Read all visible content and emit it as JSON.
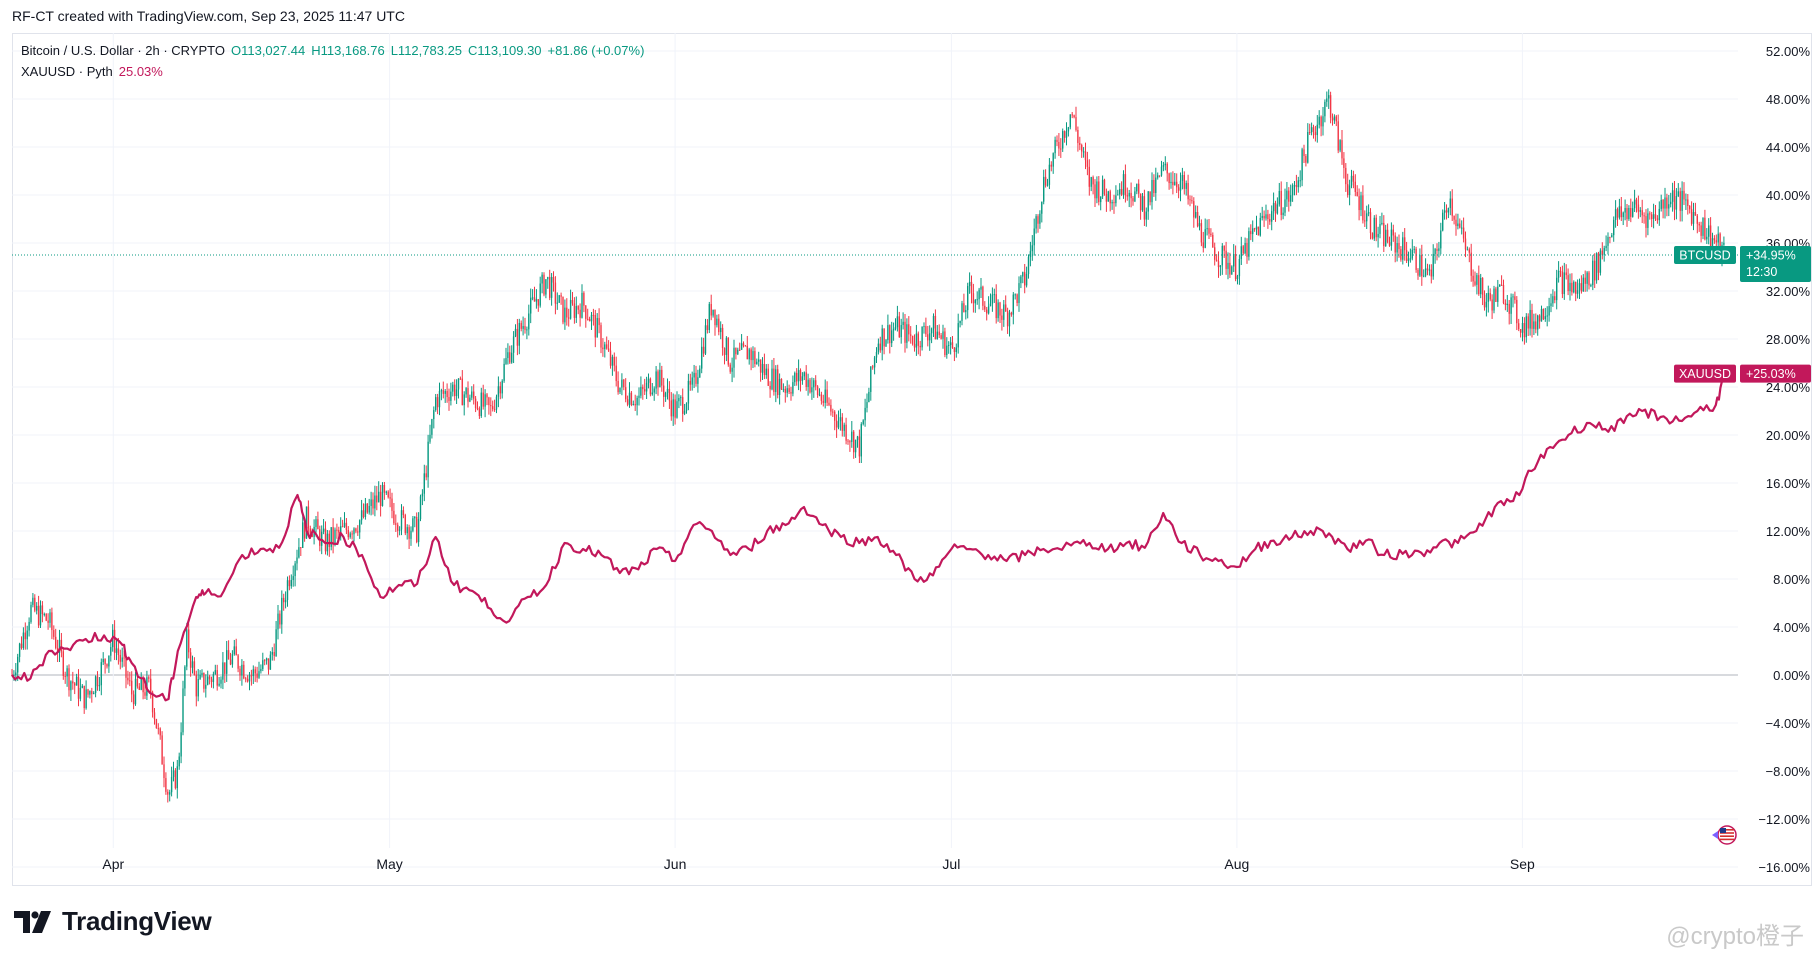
{
  "header": {
    "text": "RF-CT created with TradingView.com, Sep 23, 2025 11:47 UTC"
  },
  "legend": {
    "main": {
      "symbol": "Bitcoin / U.S. Dollar · 2h · CRYPTO",
      "open": "O113,027.44",
      "high": "H113,168.76",
      "low": "L112,783.25",
      "close": "C113,109.30",
      "change": "+81.86 (+0.07%)"
    },
    "compare": {
      "symbol": "XAUUSD · Pyth",
      "value": "25.03%"
    }
  },
  "badges": {
    "btc": {
      "label": "BTCUSD",
      "value": "+34.95%",
      "countdown": "12:30"
    },
    "xau": {
      "label": "XAUUSD",
      "value": "+25.03%"
    }
  },
  "brand": {
    "name": "TradingView"
  },
  "watermark": {
    "text": "@crypto橙子"
  },
  "colors": {
    "up": "#089981",
    "down": "#f23645",
    "xau": "#c2185b",
    "grid": "#f0f3fa",
    "zero": "#b2b5be"
  },
  "chart_data": {
    "type": "line",
    "x_labels": [
      "Apr",
      "May",
      "Jun",
      "Jul",
      "Aug",
      "Sep"
    ],
    "y_ticks": [
      "52.00%",
      "48.00%",
      "44.00%",
      "40.00%",
      "36.00%",
      "32.00%",
      "28.00%",
      "24.00%",
      "20.00%",
      "16.00%",
      "12.00%",
      "8.00%",
      "4.00%",
      "0.00%",
      "−4.00%",
      "−8.00%",
      "−12.00%",
      "−16.00%"
    ],
    "ylim": [
      -17.5,
      53.5
    ],
    "series": [
      {
        "name": "BTCUSD",
        "style": "candles",
        "x": [
          "Mar 21",
          "Mar 23",
          "Mar 25",
          "Mar 27",
          "Mar 29",
          "Mar 31",
          "Apr 1",
          "Apr 3",
          "Apr 5",
          "Apr 7",
          "Apr 8",
          "Apr 9",
          "Apr 10",
          "Apr 12",
          "Apr 14",
          "Apr 16",
          "Apr 18",
          "Apr 20",
          "Apr 22",
          "Apr 24",
          "Apr 26",
          "Apr 28",
          "Apr 30",
          "May 2",
          "May 4",
          "May 6",
          "May 8",
          "May 10",
          "May 12",
          "May 14",
          "May 16",
          "May 18",
          "May 20",
          "May 22",
          "May 24",
          "May 26",
          "May 28",
          "May 30",
          "Jun 1",
          "Jun 3",
          "Jun 5",
          "Jun 7",
          "Jun 9",
          "Jun 11",
          "Jun 13",
          "Jun 15",
          "Jun 17",
          "Jun 19",
          "Jun 21",
          "Jun 23",
          "Jun 25",
          "Jun 27",
          "Jun 29",
          "Jul 1",
          "Jul 3",
          "Jul 5",
          "Jul 7",
          "Jul 9",
          "Jul 11",
          "Jul 14",
          "Jul 16",
          "Jul 18",
          "Jul 20",
          "Jul 22",
          "Jul 24",
          "Jul 26",
          "Jul 28",
          "Jul 30",
          "Aug 1",
          "Aug 3",
          "Aug 5",
          "Aug 7",
          "Aug 9",
          "Aug 11",
          "Aug 13",
          "Aug 14",
          "Aug 16",
          "Aug 18",
          "Aug 20",
          "Aug 22",
          "Aug 24",
          "Aug 26",
          "Aug 28",
          "Aug 30",
          "Sep 1",
          "Sep 3",
          "Sep 5",
          "Sep 7",
          "Sep 9",
          "Sep 11",
          "Sep 13",
          "Sep 15",
          "Sep 17",
          "Sep 19",
          "Sep 21",
          "Sep 23"
        ],
        "values": [
          0,
          5.5,
          4.5,
          0,
          -2,
          1,
          3,
          -1.5,
          -1,
          -10,
          -8,
          3,
          -1,
          0,
          1.5,
          0,
          1,
          8,
          13,
          11,
          12,
          13,
          15,
          13,
          12,
          23,
          24,
          23,
          22,
          27,
          30,
          33,
          30,
          31,
          28,
          24,
          23,
          25,
          22,
          24,
          31,
          26,
          27,
          25,
          24,
          25,
          23,
          21,
          19,
          28,
          29,
          28,
          29,
          27,
          32,
          31,
          30,
          33,
          41,
          47,
          41,
          40,
          41,
          39,
          42,
          41,
          37,
          35,
          34,
          37,
          39,
          40,
          45,
          48,
          41,
          40,
          37,
          36,
          35,
          33,
          40,
          35,
          31,
          32,
          29,
          30,
          33,
          32,
          34,
          38,
          39,
          38,
          40,
          39,
          37,
          35
        ]
      },
      {
        "name": "XAUUSD",
        "style": "line",
        "x": [
          "Mar 21",
          "Mar 23",
          "Mar 25",
          "Mar 27",
          "Mar 29",
          "Mar 31",
          "Apr 2",
          "Apr 3",
          "Apr 5",
          "Apr 7",
          "Apr 8",
          "Apr 10",
          "Apr 11",
          "Apr 13",
          "Apr 15",
          "Apr 17",
          "Apr 19",
          "Apr 21",
          "Apr 22",
          "Apr 24",
          "Apr 26",
          "Apr 28",
          "Apr 30",
          "May 2",
          "May 4",
          "May 6",
          "May 8",
          "May 10",
          "May 12",
          "May 14",
          "May 16",
          "May 18",
          "May 20",
          "May 22",
          "May 24",
          "May 26",
          "May 28",
          "May 30",
          "Jun 1",
          "Jun 3",
          "Jun 5",
          "Jun 7",
          "Jun 9",
          "Jun 11",
          "Jun 13",
          "Jun 15",
          "Jun 17",
          "Jun 19",
          "Jun 21",
          "Jun 23",
          "Jun 25",
          "Jun 27",
          "Jun 29",
          "Jul 1",
          "Jul 3",
          "Jul 5",
          "Jul 7",
          "Jul 9",
          "Jul 11",
          "Jul 14",
          "Jul 16",
          "Jul 18",
          "Jul 20",
          "Jul 22",
          "Jul 24",
          "Jul 26",
          "Jul 28",
          "Jul 30",
          "Aug 1",
          "Aug 3",
          "Aug 5",
          "Aug 7",
          "Aug 9",
          "Aug 11",
          "Aug 13",
          "Aug 15",
          "Aug 17",
          "Aug 19",
          "Aug 21",
          "Aug 23",
          "Aug 25",
          "Aug 27",
          "Aug 29",
          "Aug 31",
          "Sep 2",
          "Sep 4",
          "Sep 6",
          "Sep 8",
          "Sep 10",
          "Sep 12",
          "Sep 14",
          "Sep 16",
          "Sep 18",
          "Sep 20",
          "Sep 22",
          "Sep 23"
        ],
        "values": [
          0,
          -0.3,
          2,
          2.2,
          3,
          3.3,
          2.5,
          1,
          -1.5,
          -2,
          2,
          6.5,
          6.8,
          7,
          10,
          10.5,
          10.6,
          15,
          12,
          11,
          11.5,
          10,
          6.5,
          7.5,
          7.6,
          11.5,
          7.5,
          7,
          5.5,
          4.5,
          6.5,
          7.5,
          11,
          10.5,
          10,
          8.5,
          8.8,
          10.5,
          9.5,
          12.5,
          12,
          10,
          10.5,
          12,
          12.5,
          14,
          12.5,
          11.5,
          11,
          11.5,
          10,
          8,
          8.3,
          10.5,
          10.5,
          10,
          9.5,
          10,
          10.5,
          10.8,
          11,
          10.5,
          11,
          10.6,
          13.5,
          11,
          10,
          9.5,
          9,
          10.5,
          11.2,
          11.5,
          12,
          11.8,
          10.5,
          11.2,
          10,
          10.1,
          10.2,
          11,
          11,
          12,
          14,
          14.5,
          17,
          19,
          20,
          21,
          20.5,
          21,
          22,
          21.5,
          21.2,
          22,
          22.5,
          25.03
        ]
      }
    ]
  }
}
